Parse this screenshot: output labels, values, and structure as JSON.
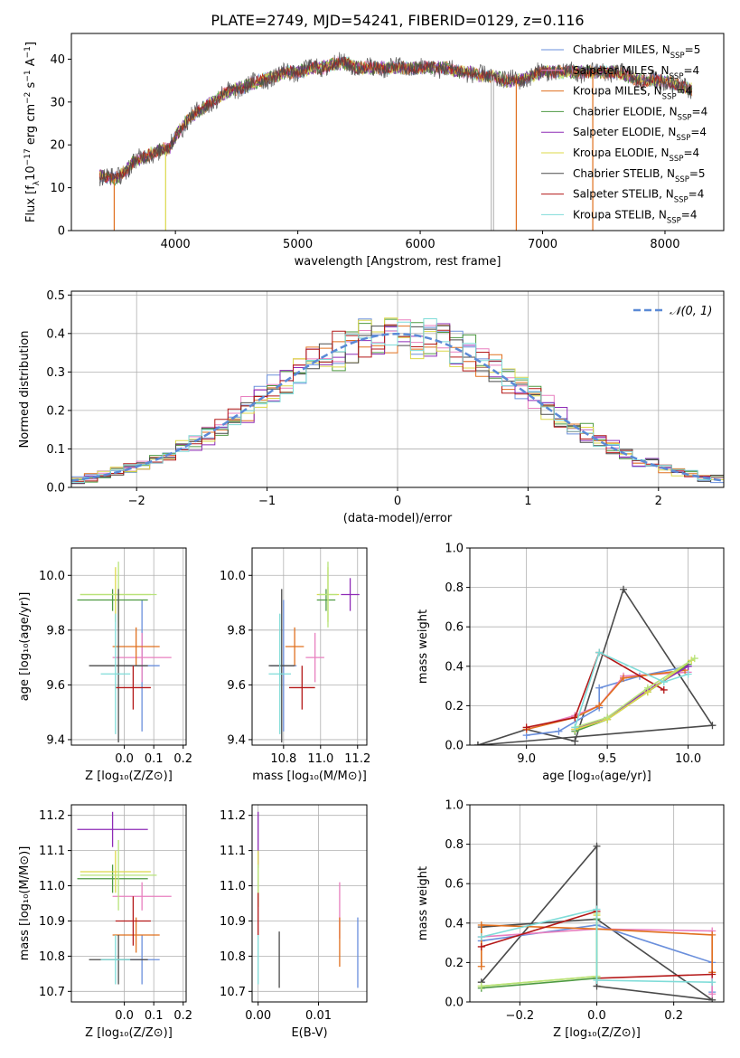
{
  "figure_title": "PLATE=2749, MJD=54241, FIBERID=0129, z=0.116",
  "colors": {
    "Chabrier MILES": "#6a8fdc",
    "Salpeter MILES": "#e87fbf",
    "Kroupa MILES": "#e0701f",
    "Chabrier ELODIE": "#4e9a42",
    "Salpeter ELODIE": "#8e2bb6",
    "Kroupa ELODIE": "#dcd84a",
    "Chabrier STELIB": "#4a4a4a",
    "Salpeter STELIB": "#b41818",
    "Kroupa STELIB": "#7fdcd8",
    "Gauss": "#5b8ad6",
    "lightgreen": "#b7e37a"
  },
  "chart_data": [
    {
      "id": "spectrum",
      "type": "line",
      "title": "PLATE=2749, MJD=54241, FIBERID=0129, z=0.116",
      "xlabel": "wavelength [Angstrom, rest frame]",
      "ylabel": "Flux [f_λ10^-17 erg cm^-2 s^-1 A^-1]",
      "xlim": [
        3150,
        8480
      ],
      "ylim": [
        0,
        46
      ],
      "xticks": [
        4000,
        5000,
        6000,
        7000,
        8000
      ],
      "yticks": [
        0,
        10,
        20,
        30,
        40
      ],
      "legend_position": "top-right",
      "legend": [
        {
          "label": "Chabrier MILES, N",
          "sub": "SSP",
          "suffix": "=5",
          "color": "#6a8fdc"
        },
        {
          "label": "Salpeter MILES, N",
          "sub": "SSP",
          "suffix": "=4",
          "color": "#e87fbf"
        },
        {
          "label": "Kroupa MILES, N",
          "sub": "SSP",
          "suffix": "=4",
          "color": "#e0701f"
        },
        {
          "label": "Chabrier ELODIE, N",
          "sub": "SSP",
          "suffix": "=4",
          "color": "#4e9a42"
        },
        {
          "label": "Salpeter ELODIE, N",
          "sub": "SSP",
          "suffix": "=4",
          "color": "#8e2bb6"
        },
        {
          "label": "Kroupa ELODIE, N",
          "sub": "SSP",
          "suffix": "=4",
          "color": "#dcd84a"
        },
        {
          "label": "Chabrier STELIB, N",
          "sub": "SSP",
          "suffix": "=5",
          "color": "#4a4a4a"
        },
        {
          "label": "Salpeter STELIB, N",
          "sub": "SSP",
          "suffix": "=4",
          "color": "#b41818"
        },
        {
          "label": "Kroupa STELIB, N",
          "sub": "SSP",
          "suffix": "=4",
          "color": "#7fdcd8"
        }
      ],
      "continuum": {
        "x": [
          3380,
          3500,
          3600,
          3650,
          3750,
          3800,
          3900,
          3950,
          4000,
          4100,
          4200,
          4300,
          4400,
          4500,
          4600,
          4700,
          4800,
          4900,
          5000,
          5100,
          5200,
          5300,
          5400,
          5500,
          5600,
          5700,
          5800,
          5900,
          6000,
          6100,
          6200,
          6300,
          6400,
          6500,
          6600,
          6700,
          6800,
          6900,
          7000,
          7100,
          7200,
          7300,
          7400,
          7500,
          7600,
          7700,
          7800,
          7900,
          8000,
          8100,
          8200
        ],
        "y": [
          13,
          12,
          14,
          16,
          17,
          18,
          19,
          19,
          22,
          26,
          28,
          30,
          32,
          33,
          34,
          35,
          36,
          37,
          37,
          38,
          38,
          39,
          39,
          38,
          38,
          38,
          38,
          38,
          38,
          38,
          38,
          37,
          37,
          36,
          36,
          35,
          35,
          36,
          37,
          37,
          37,
          37,
          37,
          37,
          37,
          36,
          35,
          35,
          35,
          34,
          33
        ]
      },
      "drops": [
        {
          "x": 3500,
          "color": "#e0701f",
          "from": 12,
          "to": 0
        },
        {
          "x": 3920,
          "color": "#dcd84a",
          "from": 18,
          "to": 0
        },
        {
          "x": 6580,
          "color": "#bbbbbb",
          "from": 36,
          "to": 0
        },
        {
          "x": 6600,
          "color": "#bbbbbb",
          "from": 36,
          "to": 0
        },
        {
          "x": 6785,
          "color": "#e0701f",
          "from": 35,
          "to": 0
        },
        {
          "x": 7410,
          "color": "#e0701f",
          "from": 37,
          "to": 0
        }
      ]
    },
    {
      "id": "residual-histogram",
      "type": "line",
      "xlabel": "(data-model)/error",
      "ylabel": "Normed distribution",
      "xlim": [
        -2.5,
        2.5
      ],
      "ylim": [
        0,
        0.51
      ],
      "xticks": [
        -2,
        -1,
        0,
        1,
        2
      ],
      "xtick_labels": [
        "−2",
        "−1",
        "0",
        "1",
        "2"
      ],
      "yticks": [
        0.0,
        0.1,
        0.2,
        0.3,
        0.4,
        0.5
      ],
      "ytick_labels": [
        "0.0",
        "0.1",
        "0.2",
        "0.3",
        "0.4",
        "0.5"
      ],
      "legend_position": "top-right",
      "gauss_legend": "𝒩(0, 1)",
      "bin_width": 0.1
    },
    {
      "id": "age-vs-Z",
      "type": "scatter",
      "xlabel": "Z [log₁₀(Z/Z⊙)]",
      "ylabel": "age  [log₁₀(age/yr)]",
      "xlim": [
        -0.18,
        0.21
      ],
      "ylim": [
        9.38,
        10.1
      ],
      "xticks": [
        0.0,
        0.1,
        0.2
      ],
      "xtick_labels": [
        "0.0",
        "0.1",
        "0.2"
      ],
      "yticks": [
        9.4,
        9.6,
        9.8,
        10.0
      ],
      "ytick_labels": [
        "9.4",
        "9.6",
        "9.8",
        "10.0"
      ],
      "points": [
        {
          "x": 0.06,
          "y": 9.67,
          "xerr": 0.06,
          "yerr": 0.24,
          "color": "#6a8fdc"
        },
        {
          "x": 0.06,
          "y": 9.7,
          "xerr": 0.1,
          "yerr": 0.09,
          "color": "#e87fbf"
        },
        {
          "x": 0.04,
          "y": 9.74,
          "xerr": 0.08,
          "yerr": 0.07,
          "color": "#e0701f"
        },
        {
          "x": -0.04,
          "y": 9.91,
          "xerr": 0.12,
          "yerr": 0.04,
          "color": "#4e9a42"
        },
        {
          "x": -0.03,
          "y": 9.93,
          "xerr": 0.12,
          "yerr": 0.1,
          "color": "#dcd84a"
        },
        {
          "x": -0.02,
          "y": 9.93,
          "xerr": 0.13,
          "yerr": 0.12,
          "color": "#b7e37a"
        },
        {
          "x": -0.02,
          "y": 9.67,
          "xerr": 0.1,
          "yerr": 0.28,
          "color": "#4a4a4a"
        },
        {
          "x": 0.03,
          "y": 9.59,
          "xerr": 0.06,
          "yerr": 0.08,
          "color": "#b41818"
        },
        {
          "x": -0.03,
          "y": 9.64,
          "xerr": 0.05,
          "yerr": 0.22,
          "color": "#7fdcd8"
        }
      ]
    },
    {
      "id": "age-vs-mass",
      "type": "scatter",
      "xlabel": "mass [log₁₀(M/M⊙)]",
      "ylabel": "",
      "xlim": [
        10.63,
        11.25
      ],
      "ylim": [
        9.38,
        10.1
      ],
      "xticks": [
        10.8,
        11.0,
        11.2
      ],
      "xtick_labels": [
        "10.8",
        "11.0",
        "11.2"
      ],
      "yticks": [
        9.4,
        9.6,
        9.8,
        10.0
      ],
      "ytick_labels": [
        "9.4",
        "9.6",
        "9.8",
        "10.0"
      ],
      "points": [
        {
          "x": 10.8,
          "y": 9.67,
          "xerr": 0.07,
          "yerr": 0.24,
          "color": "#6a8fdc"
        },
        {
          "x": 10.97,
          "y": 9.7,
          "xerr": 0.05,
          "yerr": 0.09,
          "color": "#e87fbf"
        },
        {
          "x": 10.86,
          "y": 9.74,
          "xerr": 0.05,
          "yerr": 0.07,
          "color": "#e0701f"
        },
        {
          "x": 11.03,
          "y": 9.91,
          "xerr": 0.05,
          "yerr": 0.04,
          "color": "#4e9a42"
        },
        {
          "x": 11.16,
          "y": 9.93,
          "xerr": 0.05,
          "yerr": 0.06,
          "color": "#8e2bb6"
        },
        {
          "x": 11.04,
          "y": 9.93,
          "xerr": 0.06,
          "yerr": 0.1,
          "color": "#dcd84a"
        },
        {
          "x": 11.04,
          "y": 9.93,
          "xerr": 0.05,
          "yerr": 0.12,
          "color": "#b7e37a"
        },
        {
          "x": 10.79,
          "y": 9.67,
          "xerr": 0.07,
          "yerr": 0.28,
          "color": "#4a4a4a"
        },
        {
          "x": 10.9,
          "y": 9.59,
          "xerr": 0.07,
          "yerr": 0.08,
          "color": "#b41818"
        },
        {
          "x": 10.78,
          "y": 9.64,
          "xerr": 0.06,
          "yerr": 0.22,
          "color": "#7fdcd8"
        }
      ]
    },
    {
      "id": "mass-weight-vs-age",
      "type": "line",
      "xlabel": "age  [log₁₀(age/yr)]",
      "ylabel": "mass weight",
      "xlim": [
        8.65,
        10.22
      ],
      "ylim": [
        0,
        1.0
      ],
      "xticks": [
        9.0,
        9.5,
        10.0
      ],
      "xtick_labels": [
        "9.0",
        "9.5",
        "10.0"
      ],
      "yticks": [
        0.0,
        0.2,
        0.4,
        0.6,
        0.8,
        1.0
      ],
      "ytick_labels": [
        "0.0",
        "0.2",
        "0.4",
        "0.6",
        "0.8",
        "1.0"
      ],
      "series": [
        {
          "color": "#4a4a4a",
          "x": [
            8.7,
            9.0,
            9.3,
            9.6,
            10.15,
            8.7
          ],
          "y": [
            0.0,
            0.08,
            0.02,
            0.79,
            0.1,
            0.0
          ]
        },
        {
          "color": "#6a8fdc",
          "x": [
            9.0,
            9.2,
            9.45,
            9.45,
            9.7,
            10.0
          ],
          "y": [
            0.05,
            0.07,
            0.19,
            0.29,
            0.35,
            0.4
          ]
        },
        {
          "color": "#e87fbf",
          "x": [
            9.0,
            9.3,
            9.45,
            9.6,
            10.0
          ],
          "y": [
            0.08,
            0.15,
            0.2,
            0.35,
            0.37
          ]
        },
        {
          "color": "#e0701f",
          "x": [
            9.0,
            9.3,
            9.45,
            9.6,
            9.98
          ],
          "y": [
            0.08,
            0.14,
            0.2,
            0.34,
            0.38
          ]
        },
        {
          "color": "#b41818",
          "x": [
            9.0,
            9.3,
            9.45,
            9.85
          ],
          "y": [
            0.09,
            0.14,
            0.47,
            0.28
          ]
        },
        {
          "color": "#4e9a42",
          "x": [
            9.3,
            9.5,
            9.75,
            10.0
          ],
          "y": [
            0.07,
            0.13,
            0.27,
            0.41
          ]
        },
        {
          "color": "#8e2bb6",
          "x": [
            9.3,
            9.5,
            9.75,
            10.0
          ],
          "y": [
            0.08,
            0.14,
            0.28,
            0.4
          ]
        },
        {
          "color": "#dcd84a",
          "x": [
            9.3,
            9.5,
            9.75,
            10.02
          ],
          "y": [
            0.08,
            0.13,
            0.27,
            0.43
          ]
        },
        {
          "color": "#b7e37a",
          "x": [
            9.3,
            9.5,
            9.75,
            10.04
          ],
          "y": [
            0.09,
            0.14,
            0.29,
            0.44
          ]
        },
        {
          "color": "#7fdcd8",
          "x": [
            9.3,
            9.45,
            9.85,
            10.0
          ],
          "y": [
            0.09,
            0.47,
            0.32,
            0.36
          ]
        }
      ]
    },
    {
      "id": "mass-vs-Z",
      "type": "scatter",
      "xlabel": "Z [log₁₀(Z/Z⊙)]",
      "ylabel": "mass [log₁₀(M/M⊙)]",
      "xlim": [
        -0.18,
        0.21
      ],
      "ylim": [
        10.67,
        11.23
      ],
      "xticks": [
        0.0,
        0.1,
        0.2
      ],
      "xtick_labels": [
        "0.0",
        "0.1",
        "0.2"
      ],
      "yticks": [
        10.7,
        10.8,
        10.9,
        11.0,
        11.1,
        11.2
      ],
      "ytick_labels": [
        "10.7",
        "10.8",
        "10.9",
        "11.0",
        "11.1",
        "11.2"
      ],
      "points": [
        {
          "x": 0.06,
          "y": 10.79,
          "xerr": 0.06,
          "yerr": 0.07,
          "color": "#6a8fdc"
        },
        {
          "x": 0.06,
          "y": 10.97,
          "xerr": 0.1,
          "yerr": 0.04,
          "color": "#e87fbf"
        },
        {
          "x": 0.04,
          "y": 10.86,
          "xerr": 0.08,
          "yerr": 0.05,
          "color": "#e0701f"
        },
        {
          "x": -0.04,
          "y": 11.02,
          "xerr": 0.12,
          "yerr": 0.04,
          "color": "#4e9a42"
        },
        {
          "x": -0.04,
          "y": 11.16,
          "xerr": 0.12,
          "yerr": 0.05,
          "color": "#8e2bb6"
        },
        {
          "x": -0.03,
          "y": 11.04,
          "xerr": 0.12,
          "yerr": 0.06,
          "color": "#dcd84a"
        },
        {
          "x": -0.02,
          "y": 11.03,
          "xerr": 0.13,
          "yerr": 0.1,
          "color": "#b7e37a"
        },
        {
          "x": -0.02,
          "y": 10.79,
          "xerr": 0.1,
          "yerr": 0.07,
          "color": "#4a4a4a"
        },
        {
          "x": 0.03,
          "y": 10.9,
          "xerr": 0.06,
          "yerr": 0.07,
          "color": "#b41818"
        },
        {
          "x": -0.03,
          "y": 10.79,
          "xerr": 0.05,
          "yerr": 0.07,
          "color": "#7fdcd8"
        }
      ]
    },
    {
      "id": "mass-vs-EBV",
      "type": "scatter",
      "xlabel": "E(B-V)",
      "ylabel": "",
      "xlim": [
        -0.001,
        0.018
      ],
      "ylim": [
        10.67,
        11.23
      ],
      "xticks": [
        0.0,
        0.01
      ],
      "xtick_labels": [
        "0.00",
        "0.01"
      ],
      "yticks": [
        10.7,
        10.8,
        10.9,
        11.0,
        11.1,
        11.2
      ],
      "ytick_labels": [
        "10.7",
        "10.8",
        "10.9",
        "11.0",
        "11.1",
        "11.2"
      ],
      "points": [
        {
          "x": 0.0165,
          "y": 10.81,
          "xerr": 0,
          "yerr": 0.1,
          "color": "#6a8fdc"
        },
        {
          "x": 0.0135,
          "y": 10.93,
          "xerr": 0,
          "yerr": 0.08,
          "color": "#e87fbf"
        },
        {
          "x": 0.0135,
          "y": 10.84,
          "xerr": 0,
          "yerr": 0.07,
          "color": "#e0701f"
        },
        {
          "x": 0.0,
          "y": 11.13,
          "xerr": 0,
          "yerr": 0.08,
          "color": "#8e2bb6"
        },
        {
          "x": 0.0,
          "y": 11.02,
          "xerr": 0,
          "yerr": 0.08,
          "color": "#dcd84a"
        },
        {
          "x": 0.0,
          "y": 11.0,
          "xerr": 0,
          "yerr": 0.06,
          "color": "#b7e37a"
        },
        {
          "x": 0.0035,
          "y": 10.79,
          "xerr": 0,
          "yerr": 0.08,
          "color": "#4a4a4a"
        },
        {
          "x": 0.0,
          "y": 10.92,
          "xerr": 0,
          "yerr": 0.06,
          "color": "#b41818"
        },
        {
          "x": 0.0,
          "y": 10.79,
          "xerr": 0,
          "yerr": 0.07,
          "color": "#7fdcd8"
        }
      ]
    },
    {
      "id": "mass-weight-vs-Z",
      "type": "line",
      "xlabel": "Z [log₁₀(Z/Z⊙)]",
      "ylabel": "mass weight",
      "xlim": [
        -0.33,
        0.33
      ],
      "ylim": [
        0,
        1.0
      ],
      "xticks": [
        -0.2,
        0.0,
        0.2
      ],
      "xtick_labels": [
        "−0.2",
        "0.0",
        "0.2"
      ],
      "yticks": [
        0.0,
        0.2,
        0.4,
        0.6,
        0.8,
        1.0
      ],
      "ytick_labels": [
        "0.0",
        "0.2",
        "0.4",
        "0.6",
        "0.8",
        "1.0"
      ],
      "series": [
        {
          "color": "#4a4a4a",
          "x": [
            -0.3,
            0.0,
            0.0,
            0.3,
            0.0,
            -0.3
          ],
          "y": [
            0.1,
            0.79,
            0.08,
            0.01,
            0.42,
            0.38
          ]
        },
        {
          "color": "#6a8fdc",
          "x": [
            -0.3,
            0.0,
            0.3,
            0.3
          ],
          "y": [
            0.31,
            0.39,
            0.2,
            0.05
          ]
        },
        {
          "color": "#e87fbf",
          "x": [
            -0.3,
            0.0,
            0.3,
            0.3
          ],
          "y": [
            0.33,
            0.37,
            0.36,
            0.04
          ]
        },
        {
          "color": "#e0701f",
          "x": [
            -0.3,
            -0.3,
            0.0,
            0.3,
            0.3
          ],
          "y": [
            0.18,
            0.39,
            0.37,
            0.34,
            0.15
          ]
        },
        {
          "color": "#b41818",
          "x": [
            -0.3,
            0.0,
            0.0,
            0.3
          ],
          "y": [
            0.28,
            0.46,
            0.12,
            0.14
          ]
        },
        {
          "color": "#4e9a42",
          "x": [
            -0.3,
            0.0,
            0.0
          ],
          "y": [
            0.07,
            0.12,
            0.42
          ]
        },
        {
          "color": "#dcd84a",
          "x": [
            -0.3,
            0.0,
            0.0
          ],
          "y": [
            0.08,
            0.13,
            0.44
          ]
        },
        {
          "color": "#b7e37a",
          "x": [
            -0.3,
            0.0,
            0.0
          ],
          "y": [
            0.08,
            0.13,
            0.45
          ]
        },
        {
          "color": "#7fdcd8",
          "x": [
            -0.3,
            0.0,
            0.0,
            0.3
          ],
          "y": [
            0.33,
            0.47,
            0.11,
            0.1
          ]
        }
      ]
    }
  ]
}
